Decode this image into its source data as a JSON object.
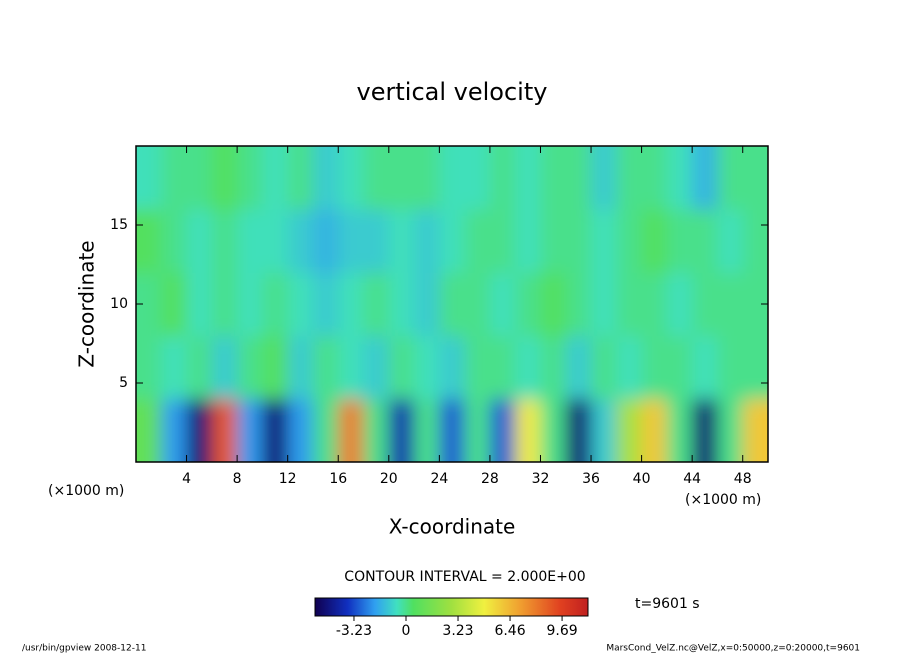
{
  "chart_data": {
    "type": "heatmap",
    "title": "vertical velocity",
    "x_label": "X-coordinate",
    "y_label": "Z-coordinate",
    "unit_label": "(×1000 m)",
    "xlim": [
      0,
      50
    ],
    "ylim": [
      0,
      20
    ],
    "xticks": [
      4,
      8,
      12,
      16,
      20,
      24,
      28,
      32,
      36,
      40,
      44,
      48
    ],
    "yticks": [
      5,
      10,
      15
    ],
    "x": [
      1,
      3,
      5,
      7,
      9,
      11,
      13,
      15,
      17,
      19,
      21,
      23,
      25,
      27,
      29,
      31,
      33,
      35,
      37,
      39,
      41,
      43,
      45,
      47,
      49
    ],
    "y": [
      2,
      6,
      10,
      14,
      18
    ],
    "z": [
      [
        1,
        -2,
        -5,
        9,
        -2,
        -5,
        -2,
        0,
        8,
        0,
        -4,
        0,
        -3,
        0,
        -3,
        5,
        0,
        -5,
        -1,
        3,
        6,
        0,
        -5,
        0,
        6
      ],
      [
        0,
        -0.5,
        0,
        -1,
        0,
        0.5,
        -1,
        0,
        -0.5,
        -1,
        0,
        -0.5,
        -1,
        0,
        0,
        -0.5,
        0,
        -1,
        0,
        -0.5,
        0,
        0,
        -0.5,
        0,
        0
      ],
      [
        0,
        0.5,
        -0.5,
        0,
        -0.5,
        0,
        -0.5,
        -1,
        -0.5,
        0,
        -0.5,
        -1,
        0,
        0,
        -0.5,
        0,
        0.5,
        0,
        -0.5,
        0,
        0,
        -0.5,
        0,
        0,
        0
      ],
      [
        0.5,
        0,
        -0.5,
        0,
        -0.5,
        -0.5,
        -1,
        -1.5,
        -1,
        -1,
        -0.5,
        -1,
        -0.5,
        0,
        0,
        -0.5,
        0,
        0,
        -0.5,
        0,
        0.5,
        0,
        0,
        -0.5,
        0
      ],
      [
        -0.5,
        0,
        0,
        0.5,
        0,
        -0.5,
        0,
        -1,
        -0.5,
        0,
        0,
        0,
        -0.5,
        -0.5,
        0,
        -0.5,
        0,
        0,
        -1,
        0,
        0,
        -0.5,
        -1.5,
        0,
        0
      ]
    ],
    "contour_interval_label": "CONTOUR INTERVAL = 2.000E+00",
    "clim": [
      -5.65,
      11.3
    ],
    "colorbar_ticks": [
      -3.23,
      0,
      3.23,
      6.46,
      9.69
    ],
    "time_label": "t=9601 s",
    "footer_left": "/usr/bin/gpview   2008-12-11",
    "footer_right": "MarsCond_VelZ.nc@VelZ,x=0:50000,z=0:20000,t=9601"
  }
}
